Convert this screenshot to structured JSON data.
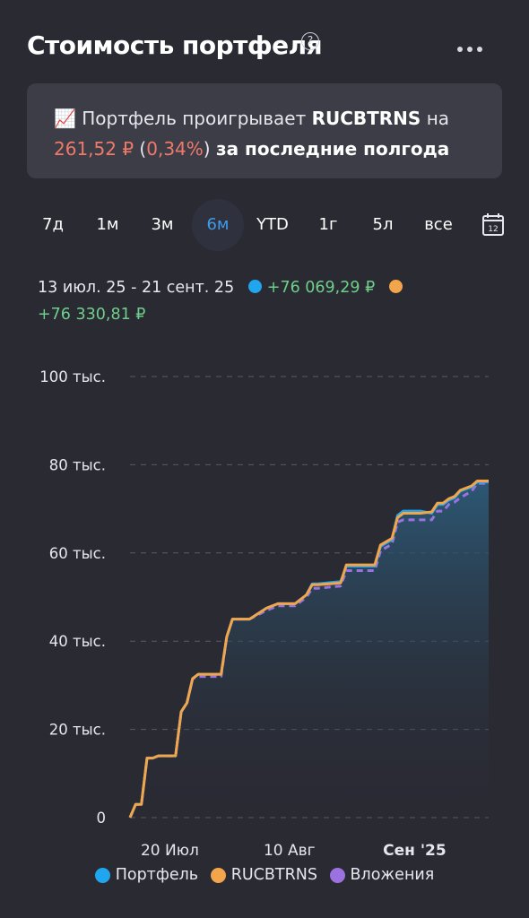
{
  "header": {
    "title": "Стоимость портфеля",
    "help_glyph": "?"
  },
  "banner": {
    "emoji": "📈",
    "text_1": "Портфель проигрывает",
    "ticker": "RUCBTRNS",
    "text_2": "на",
    "amount": "261,52 ₽",
    "percent_open": "(",
    "percent": "0,34%",
    "percent_close": ")",
    "text_3": "за последние полгода"
  },
  "periods": [
    "7д",
    "1м",
    "3м",
    "6м",
    "YTD",
    "1г",
    "5л",
    "все"
  ],
  "active_period": "6м",
  "calendar_day": "12",
  "range": {
    "dates": "13 июл. 25 - 21 сент. 25",
    "portfolio_delta": "+76 069,29 ₽",
    "benchmark_delta": "+76 330,81 ₽"
  },
  "colors": {
    "portfolio": "#1fa6ee",
    "benchmark": "#f2a54a",
    "investments": "#9c72e0",
    "negative": "#f07a6a",
    "positive": "#6fcf8a",
    "accent": "#3f9be8"
  },
  "chart_data": {
    "type": "line",
    "xlabel": "",
    "ylabel": "",
    "y_ticks": [
      "100 тыс.",
      "80 тыс.",
      "60 тыс.",
      "40 тыс.",
      "20 тыс.",
      "0"
    ],
    "y_tick_values": [
      100000,
      80000,
      60000,
      40000,
      20000,
      0
    ],
    "x_ticks": [
      "20 Июл",
      "10 Авг",
      "Сен '25"
    ],
    "x_tick_days": [
      7,
      28,
      50
    ],
    "ylim": [
      0,
      100000
    ],
    "x_range_days": [
      0,
      70
    ],
    "grid": true,
    "legend_position": "bottom",
    "series": [
      {
        "name": "Портфель",
        "key": "portfolio",
        "points": [
          [
            0,
            0
          ],
          [
            1,
            3000
          ],
          [
            2,
            3000
          ],
          [
            3,
            13500
          ],
          [
            4,
            13500
          ],
          [
            5,
            14000
          ],
          [
            8,
            14000
          ],
          [
            9,
            24000
          ],
          [
            10,
            26000
          ],
          [
            11,
            31500
          ],
          [
            12,
            32500
          ],
          [
            16,
            32500
          ],
          [
            17,
            41000
          ],
          [
            18,
            45000
          ],
          [
            21,
            45000
          ],
          [
            24,
            47500
          ],
          [
            26,
            48500
          ],
          [
            29,
            48500
          ],
          [
            31,
            50500
          ],
          [
            32,
            53000
          ],
          [
            33,
            53000
          ],
          [
            37,
            53500
          ],
          [
            38,
            57000
          ],
          [
            43,
            57000
          ],
          [
            44,
            61500
          ],
          [
            46,
            63000
          ],
          [
            47,
            68500
          ],
          [
            48,
            69500
          ],
          [
            51,
            69500
          ],
          [
            53,
            69000
          ],
          [
            54,
            71000
          ],
          [
            55,
            71000
          ],
          [
            56,
            72000
          ],
          [
            57,
            72500
          ],
          [
            58,
            74000
          ],
          [
            60,
            75000
          ],
          [
            61,
            76100
          ],
          [
            63,
            76100
          ]
        ]
      },
      {
        "name": "RUCBTRNS",
        "key": "benchmark",
        "points": [
          [
            0,
            0
          ],
          [
            1,
            3000
          ],
          [
            2,
            3000
          ],
          [
            3,
            13500
          ],
          [
            4,
            13500
          ],
          [
            5,
            14000
          ],
          [
            8,
            14000
          ],
          [
            9,
            24000
          ],
          [
            10,
            26000
          ],
          [
            11,
            31500
          ],
          [
            12,
            32500
          ],
          [
            16,
            32500
          ],
          [
            17,
            41000
          ],
          [
            18,
            45000
          ],
          [
            21,
            45000
          ],
          [
            24,
            47500
          ],
          [
            26,
            48500
          ],
          [
            29,
            48500
          ],
          [
            31,
            50500
          ],
          [
            32,
            52800
          ],
          [
            33,
            52800
          ],
          [
            37,
            53200
          ],
          [
            38,
            57300
          ],
          [
            43,
            57300
          ],
          [
            44,
            61800
          ],
          [
            46,
            63300
          ],
          [
            47,
            68000
          ],
          [
            48,
            69000
          ],
          [
            51,
            69000
          ],
          [
            53,
            69300
          ],
          [
            54,
            71300
          ],
          [
            55,
            71300
          ],
          [
            56,
            72300
          ],
          [
            57,
            72800
          ],
          [
            58,
            74200
          ],
          [
            60,
            75200
          ],
          [
            61,
            76330
          ],
          [
            63,
            76330
          ]
        ]
      },
      {
        "name": "Вложения",
        "key": "investments",
        "dashed": true,
        "points": [
          [
            0,
            0
          ],
          [
            1,
            3000
          ],
          [
            2,
            3000
          ],
          [
            3,
            13500
          ],
          [
            4,
            13500
          ],
          [
            5,
            14000
          ],
          [
            8,
            14000
          ],
          [
            9,
            24000
          ],
          [
            10,
            26000
          ],
          [
            11,
            31500
          ],
          [
            12,
            32000
          ],
          [
            16,
            32000
          ],
          [
            17,
            41000
          ],
          [
            18,
            45000
          ],
          [
            21,
            45000
          ],
          [
            24,
            47000
          ],
          [
            26,
            48000
          ],
          [
            29,
            48000
          ],
          [
            31,
            50000
          ],
          [
            32,
            52000
          ],
          [
            33,
            52000
          ],
          [
            37,
            52500
          ],
          [
            38,
            56000
          ],
          [
            43,
            56000
          ],
          [
            44,
            60500
          ],
          [
            46,
            62000
          ],
          [
            47,
            67000
          ],
          [
            48,
            67500
          ],
          [
            51,
            67500
          ],
          [
            53,
            67500
          ],
          [
            54,
            69500
          ],
          [
            55,
            69500
          ],
          [
            56,
            71000
          ],
          [
            57,
            71500
          ],
          [
            58,
            72500
          ],
          [
            60,
            74000
          ],
          [
            61,
            75800
          ],
          [
            63,
            75800
          ]
        ]
      }
    ]
  }
}
